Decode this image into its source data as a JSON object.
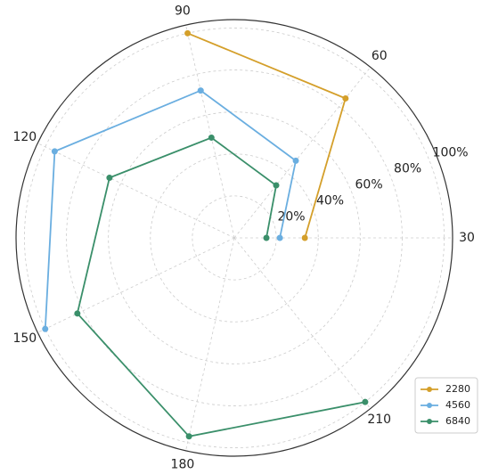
{
  "chart_data": {
    "type": "polar_line",
    "categories": [
      30,
      60,
      90,
      120,
      150,
      180,
      210
    ],
    "series": [
      {
        "name": "2280",
        "color": "#d49f2a",
        "values": [
          33.6,
          85,
          100,
          null,
          null,
          null,
          null
        ]
      },
      {
        "name": "4560",
        "color": "#6aaee0",
        "values": [
          21.7,
          47,
          72,
          95,
          100,
          null,
          null
        ]
      },
      {
        "name": "6840",
        "color": "#3a8f6a",
        "values": [
          15.3,
          32,
          49,
          66,
          83,
          97,
          100
        ]
      }
    ],
    "ylim": [
      0,
      104
    ],
    "yticks": [
      {
        "value": 20,
        "label": "20%"
      },
      {
        "value": 40,
        "label": "40%"
      },
      {
        "value": 60,
        "label": "60%"
      },
      {
        "value": 80,
        "label": "80%"
      },
      {
        "value": 100,
        "label": "100%"
      }
    ],
    "grid": true,
    "legend": "lower right"
  }
}
